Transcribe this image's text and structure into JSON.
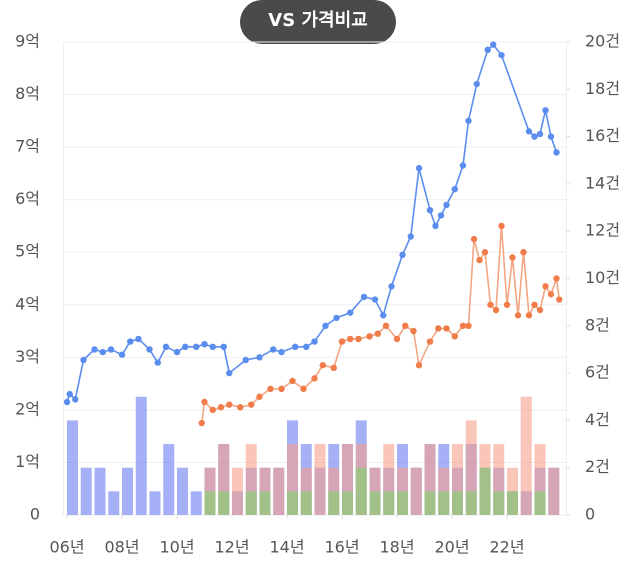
{
  "chart_data": {
    "type": "combo",
    "title": "VS 가격비교",
    "xlim": [
      2006,
      2024
    ],
    "xticks": [
      {
        "value": 2006,
        "label": "06년"
      },
      {
        "value": 2008,
        "label": "08년"
      },
      {
        "value": 2010,
        "label": "10년"
      },
      {
        "value": 2012,
        "label": "12년"
      },
      {
        "value": 2014,
        "label": "14년"
      },
      {
        "value": 2016,
        "label": "16년"
      },
      {
        "value": 2018,
        "label": "18년"
      },
      {
        "value": 2020,
        "label": "20년"
      },
      {
        "value": 2022,
        "label": "22년"
      }
    ],
    "ylim": [
      0,
      9
    ],
    "yticks": [
      0,
      {
        "value": 1,
        "label": "1억"
      },
      {
        "value": 2,
        "label": "2억"
      },
      {
        "value": 3,
        "label": "3억"
      },
      {
        "value": 4,
        "label": "4억"
      },
      {
        "value": 5,
        "label": "5억"
      },
      {
        "value": 6,
        "label": "6억"
      },
      {
        "value": 7,
        "label": "7억"
      },
      {
        "value": 8,
        "label": "8억"
      },
      {
        "value": 9,
        "label": "9억"
      }
    ],
    "y2lim": [
      0,
      20
    ],
    "y2ticks": [
      0,
      {
        "value": 2,
        "label": "2건"
      },
      {
        "value": 4,
        "label": "4건"
      },
      {
        "value": 6,
        "label": "6건"
      },
      {
        "value": 8,
        "label": "8건"
      },
      {
        "value": 10,
        "label": "10건"
      },
      {
        "value": 12,
        "label": "12건"
      },
      {
        "value": 14,
        "label": "14건"
      },
      {
        "value": 16,
        "label": "16건"
      },
      {
        "value": 18,
        "label": "18건"
      },
      {
        "value": 20,
        "label": "20건"
      }
    ],
    "grid": true,
    "series": [
      {
        "type": "bar",
        "axis": "y2",
        "color": "#6b7cf0",
        "x": [
          2006.0,
          2006.5,
          2007.0,
          2007.5,
          2008.0,
          2008.5,
          2009.0,
          2009.5,
          2010.0,
          2010.5,
          2011.0,
          2011.5,
          2012.0,
          2012.5,
          2013.0,
          2013.5,
          2014.0,
          2014.5,
          2015.0,
          2015.5,
          2016.0,
          2016.5,
          2017.0,
          2017.5,
          2018.0,
          2018.5,
          2019.0,
          2019.5,
          2020.0,
          2020.5,
          2021.0,
          2021.5,
          2022.0,
          2022.5,
          2023.0,
          2023.5
        ],
        "values": [
          4,
          2,
          2,
          1,
          2,
          5,
          1,
          3,
          2,
          1,
          2,
          3,
          1,
          2,
          2,
          2,
          4,
          3,
          2,
          3,
          3,
          4,
          2,
          2,
          3,
          2,
          3,
          3,
          2,
          3,
          2,
          2,
          1,
          1,
          2,
          2
        ]
      },
      {
        "type": "bar",
        "axis": "y2",
        "color": "#f7a08c",
        "x": [
          2011.0,
          2011.5,
          2012.0,
          2012.5,
          2013.0,
          2013.5,
          2014.0,
          2014.5,
          2015.0,
          2015.5,
          2016.0,
          2016.5,
          2017.0,
          2017.5,
          2018.0,
          2018.5,
          2019.0,
          2019.5,
          2020.0,
          2020.5,
          2021.0,
          2021.5,
          2022.0,
          2022.5,
          2023.0,
          2023.5
        ],
        "values": [
          2,
          3,
          2,
          3,
          2,
          2,
          3,
          2,
          3,
          2,
          3,
          3,
          2,
          3,
          2,
          2,
          3,
          2,
          3,
          4,
          3,
          3,
          2,
          5,
          3,
          2
        ]
      },
      {
        "type": "bar",
        "axis": "y2",
        "color": "#7fd46b",
        "x": [
          2011.0,
          2011.5,
          2012.0,
          2012.5,
          2013.0,
          2013.5,
          2014.0,
          2014.5,
          2015.0,
          2015.5,
          2016.0,
          2016.5,
          2017.0,
          2017.5,
          2018.0,
          2018.5,
          2019.0,
          2019.5,
          2020.0,
          2020.5,
          2021.0,
          2021.5,
          2022.0,
          2022.5,
          2023.0,
          2023.5
        ],
        "values": [
          1,
          1,
          0,
          1,
          1,
          0,
          1,
          1,
          0,
          1,
          1,
          2,
          1,
          1,
          1,
          0,
          1,
          1,
          1,
          1,
          2,
          1,
          1,
          0,
          1,
          0
        ]
      },
      {
        "type": "line",
        "color": "#5b8def",
        "x": [
          2006.0,
          2006.1,
          2006.3,
          2006.6,
          2007.0,
          2007.3,
          2007.6,
          2008.0,
          2008.3,
          2008.6,
          2009.0,
          2009.3,
          2009.6,
          2010.0,
          2010.3,
          2010.7,
          2011.0,
          2011.3,
          2011.7,
          2011.9,
          2012.5,
          2013.0,
          2013.5,
          2013.8,
          2014.3,
          2014.7,
          2015.0,
          2015.4,
          2015.8,
          2016.3,
          2016.8,
          2017.2,
          2017.5,
          2017.8,
          2018.2,
          2018.5,
          2018.8,
          2019.2,
          2019.4,
          2019.6,
          2019.8,
          2020.1,
          2020.4,
          2020.6,
          2020.9,
          2021.3,
          2021.5,
          2021.8,
          2022.8,
          2023.0,
          2023.2,
          2023.4,
          2023.6,
          2023.8
        ],
        "values": [
          2.15,
          2.3,
          2.2,
          2.95,
          3.15,
          3.1,
          3.15,
          3.05,
          3.3,
          3.35,
          3.15,
          2.9,
          3.2,
          3.1,
          3.2,
          3.2,
          3.25,
          3.2,
          3.2,
          2.7,
          2.95,
          3.0,
          3.15,
          3.1,
          3.2,
          3.2,
          3.3,
          3.6,
          3.75,
          3.85,
          4.15,
          4.1,
          3.8,
          4.35,
          4.95,
          5.3,
          6.6,
          5.8,
          5.5,
          5.7,
          5.9,
          6.2,
          6.65,
          7.5,
          8.2,
          8.85,
          8.95,
          8.75,
          7.3,
          7.2,
          7.25,
          7.7,
          7.2,
          6.9
        ]
      },
      {
        "type": "line",
        "color": "#f4a582",
        "point_color": "#f07c4a",
        "x": [
          2010.9,
          2011.0,
          2011.3,
          2011.6,
          2011.9,
          2012.3,
          2012.7,
          2013.0,
          2013.4,
          2013.8,
          2014.2,
          2014.6,
          2015.0,
          2015.3,
          2015.7,
          2016.0,
          2016.3,
          2016.6,
          2017.0,
          2017.3,
          2017.6,
          2018.0,
          2018.3,
          2018.6,
          2018.8,
          2019.2,
          2019.5,
          2019.8,
          2020.1,
          2020.4,
          2020.6,
          2020.8,
          2021.0,
          2021.2,
          2021.4,
          2021.6,
          2021.8,
          2022.0,
          2022.2,
          2022.4,
          2022.6,
          2022.8,
          2023.0,
          2023.2,
          2023.4,
          2023.6,
          2023.8,
          2023.9
        ],
        "values": [
          1.75,
          2.15,
          2.0,
          2.05,
          2.1,
          2.05,
          2.1,
          2.25,
          2.4,
          2.4,
          2.55,
          2.4,
          2.6,
          2.85,
          2.8,
          3.3,
          3.35,
          3.35,
          3.4,
          3.45,
          3.6,
          3.35,
          3.6,
          3.5,
          2.85,
          3.3,
          3.55,
          3.55,
          3.4,
          3.6,
          3.6,
          5.25,
          4.85,
          5.0,
          4.0,
          3.9,
          5.5,
          4.0,
          4.9,
          3.8,
          5.0,
          3.8,
          4.0,
          3.9,
          4.35,
          4.2,
          4.5,
          4.1
        ]
      }
    ]
  }
}
